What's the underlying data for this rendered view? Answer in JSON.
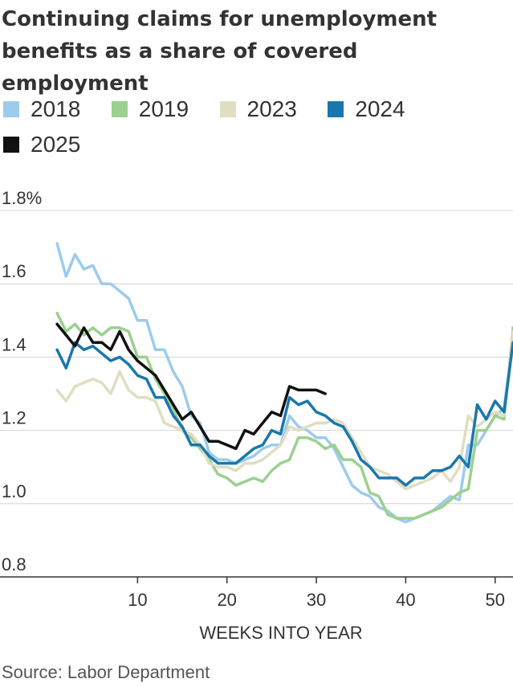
{
  "title": "Continuing claims for unemployment benefits as a share of covered employment",
  "source": "Source: Labor Department",
  "chart_data": {
    "type": "line",
    "xlabel": "WEEKS INTO YEAR",
    "ylabel": "",
    "xlim": [
      0,
      52
    ],
    "ylim": [
      0.8,
      1.8
    ],
    "x_ticks": [
      10,
      20,
      30,
      40,
      50
    ],
    "y_ticks": [
      {
        "value": 0.8,
        "label": "0.8"
      },
      {
        "value": 1.0,
        "label": "1.0"
      },
      {
        "value": 1.2,
        "label": "1.2"
      },
      {
        "value": 1.4,
        "label": "1.4"
      },
      {
        "value": 1.6,
        "label": "1.6"
      },
      {
        "value": 1.8,
        "label": "1.8%"
      }
    ],
    "grid": "horizontal",
    "legend_position": "top",
    "series": [
      {
        "name": "2018",
        "color": "#9ccbec",
        "x": [
          1,
          2,
          3,
          4,
          5,
          6,
          7,
          8,
          9,
          10,
          11,
          12,
          13,
          14,
          15,
          16,
          17,
          18,
          19,
          20,
          21,
          22,
          23,
          24,
          25,
          26,
          27,
          28,
          29,
          30,
          31,
          32,
          33,
          34,
          35,
          36,
          37,
          38,
          39,
          40,
          41,
          42,
          43,
          44,
          45,
          46,
          47,
          48,
          49,
          50,
          51,
          52
        ],
        "values": [
          1.71,
          1.62,
          1.68,
          1.64,
          1.65,
          1.6,
          1.6,
          1.58,
          1.56,
          1.5,
          1.5,
          1.42,
          1.42,
          1.36,
          1.32,
          1.24,
          1.22,
          1.14,
          1.12,
          1.12,
          1.11,
          1.12,
          1.13,
          1.15,
          1.16,
          1.16,
          1.24,
          1.21,
          1.2,
          1.18,
          1.18,
          1.15,
          1.1,
          1.05,
          1.03,
          1.02,
          0.99,
          0.98,
          0.96,
          0.95,
          0.96,
          0.97,
          0.98,
          1.0,
          1.02,
          1.01,
          1.16,
          1.16,
          1.2,
          1.24,
          1.26,
          1.46
        ]
      },
      {
        "name": "2019",
        "color": "#9bd08f",
        "x": [
          1,
          2,
          3,
          4,
          5,
          6,
          7,
          8,
          9,
          10,
          11,
          12,
          13,
          14,
          15,
          16,
          17,
          18,
          19,
          20,
          21,
          22,
          23,
          24,
          25,
          26,
          27,
          28,
          29,
          30,
          31,
          32,
          33,
          34,
          35,
          36,
          37,
          38,
          39,
          40,
          41,
          42,
          43,
          44,
          45,
          46,
          47,
          48,
          49,
          50,
          51,
          52
        ],
        "values": [
          1.52,
          1.47,
          1.49,
          1.46,
          1.48,
          1.46,
          1.48,
          1.48,
          1.47,
          1.4,
          1.4,
          1.34,
          1.3,
          1.26,
          1.2,
          1.18,
          1.15,
          1.12,
          1.08,
          1.07,
          1.05,
          1.06,
          1.07,
          1.06,
          1.09,
          1.11,
          1.12,
          1.18,
          1.18,
          1.17,
          1.15,
          1.16,
          1.12,
          1.12,
          1.1,
          1.03,
          1.02,
          0.97,
          0.96,
          0.96,
          0.96,
          0.97,
          0.98,
          0.99,
          1.01,
          1.03,
          1.04,
          1.2,
          1.2,
          1.24,
          1.23,
          1.48
        ]
      },
      {
        "name": "2023",
        "color": "#e0ddc2",
        "x": [
          1,
          2,
          3,
          4,
          5,
          6,
          7,
          8,
          9,
          10,
          11,
          12,
          13,
          14,
          15,
          16,
          17,
          18,
          19,
          20,
          21,
          22,
          23,
          24,
          25,
          26,
          27,
          28,
          29,
          30,
          31,
          32,
          33,
          34,
          35,
          36,
          37,
          38,
          39,
          40,
          41,
          42,
          43,
          44,
          45,
          46,
          47,
          48,
          49,
          50,
          51,
          52
        ],
        "values": [
          1.31,
          1.28,
          1.32,
          1.33,
          1.34,
          1.33,
          1.3,
          1.36,
          1.31,
          1.29,
          1.29,
          1.28,
          1.22,
          1.21,
          1.2,
          1.19,
          1.16,
          1.11,
          1.1,
          1.1,
          1.09,
          1.11,
          1.11,
          1.12,
          1.14,
          1.16,
          1.21,
          1.2,
          1.21,
          1.22,
          1.22,
          1.23,
          1.22,
          1.18,
          1.14,
          1.1,
          1.09,
          1.08,
          1.06,
          1.04,
          1.05,
          1.06,
          1.07,
          1.09,
          1.06,
          1.1,
          1.24,
          1.21,
          1.23,
          1.25,
          1.24,
          1.47
        ]
      },
      {
        "name": "2024",
        "color": "#1a77ad",
        "x": [
          1,
          2,
          3,
          4,
          5,
          6,
          7,
          8,
          9,
          10,
          11,
          12,
          13,
          14,
          15,
          16,
          17,
          18,
          19,
          20,
          21,
          22,
          23,
          24,
          25,
          26,
          27,
          28,
          29,
          30,
          31,
          32,
          33,
          34,
          35,
          36,
          37,
          38,
          39,
          40,
          41,
          42,
          43,
          44,
          45,
          46,
          47,
          48,
          49,
          50,
          51,
          52
        ],
        "values": [
          1.42,
          1.37,
          1.44,
          1.42,
          1.43,
          1.41,
          1.39,
          1.4,
          1.38,
          1.35,
          1.34,
          1.29,
          1.29,
          1.24,
          1.21,
          1.16,
          1.16,
          1.13,
          1.11,
          1.11,
          1.11,
          1.13,
          1.15,
          1.16,
          1.2,
          1.19,
          1.29,
          1.27,
          1.28,
          1.25,
          1.24,
          1.22,
          1.21,
          1.17,
          1.12,
          1.1,
          1.07,
          1.07,
          1.07,
          1.05,
          1.07,
          1.07,
          1.09,
          1.09,
          1.1,
          1.13,
          1.1,
          1.27,
          1.23,
          1.28,
          1.25,
          1.44
        ]
      },
      {
        "name": "2025",
        "color": "#111111",
        "x": [
          1,
          2,
          3,
          4,
          5,
          6,
          7,
          8,
          9,
          10,
          11,
          12,
          13,
          14,
          15,
          16,
          17,
          18,
          19,
          20,
          21,
          22,
          23,
          24,
          25,
          26,
          27,
          28,
          29,
          30,
          31
        ],
        "values": [
          1.49,
          1.46,
          1.43,
          1.48,
          1.44,
          1.44,
          1.42,
          1.47,
          1.42,
          1.39,
          1.37,
          1.35,
          1.31,
          1.27,
          1.23,
          1.25,
          1.21,
          1.17,
          1.17,
          1.16,
          1.15,
          1.2,
          1.19,
          1.22,
          1.25,
          1.24,
          1.32,
          1.31,
          1.31,
          1.31,
          1.3
        ]
      }
    ]
  }
}
